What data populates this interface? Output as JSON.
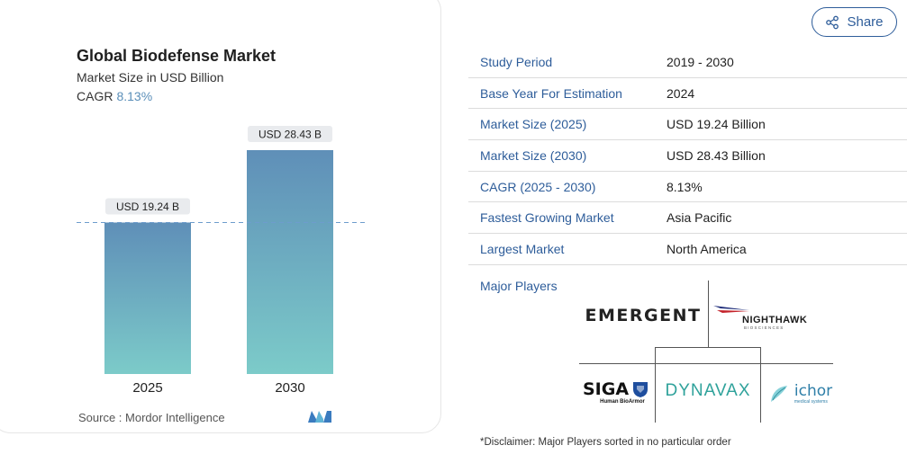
{
  "chart": {
    "title": "Global Biodefense Market",
    "subtitle": "Market Size in USD Billion",
    "cagr_label": "CAGR",
    "cagr_value": "8.13%",
    "source": "Source : Mordor Intelligence"
  },
  "chart_data": {
    "type": "bar",
    "categories": [
      "2025",
      "2030"
    ],
    "values": [
      19.24,
      28.43
    ],
    "data_labels": [
      "USD 19.24 B",
      "USD 28.43 B"
    ],
    "title": "Global Biodefense Market",
    "subtitle": "Market Size in USD Billion",
    "xlabel": "",
    "ylabel": "",
    "ylim": [
      0,
      28.43
    ],
    "reference_line": 19.24,
    "colors": {
      "bar_top": "#5f8fb8",
      "bar_bottom": "#7ccbc9",
      "label_bg": "#e9ebee",
      "dashed_line": "#6d9ccc"
    }
  },
  "share": {
    "label": "Share",
    "icon": "share-icon"
  },
  "info": [
    {
      "label": "Study Period",
      "value": "2019 - 2030"
    },
    {
      "label": "Base Year For Estimation",
      "value": "2024"
    },
    {
      "label": "Market Size (2025)",
      "value": "USD 19.24 Billion"
    },
    {
      "label": "Market Size (2030)",
      "value": "USD 28.43 Billion"
    },
    {
      "label": "CAGR (2025 - 2030)",
      "value": "8.13%"
    },
    {
      "label": "Fastest Growing Market",
      "value": "Asia Pacific"
    },
    {
      "label": "Largest Market",
      "value": "North America"
    }
  ],
  "players_label": "Major Players",
  "players": {
    "emergent": "EMERGENT",
    "nighthawk": "NIGHTHAWK",
    "nighthawk_sub": "B I O S C I E N C E S",
    "siga": "SIGA",
    "siga_sub": "Human BioArmor",
    "dynavax": "DYNAVAX",
    "ichor": "ichor",
    "ichor_sub": "medical systems"
  },
  "disclaimer": "*Disclaimer: Major Players sorted in no particular order",
  "colors": {
    "accent": "#2e5d9a",
    "mi_logo": "#3a7bbf"
  }
}
